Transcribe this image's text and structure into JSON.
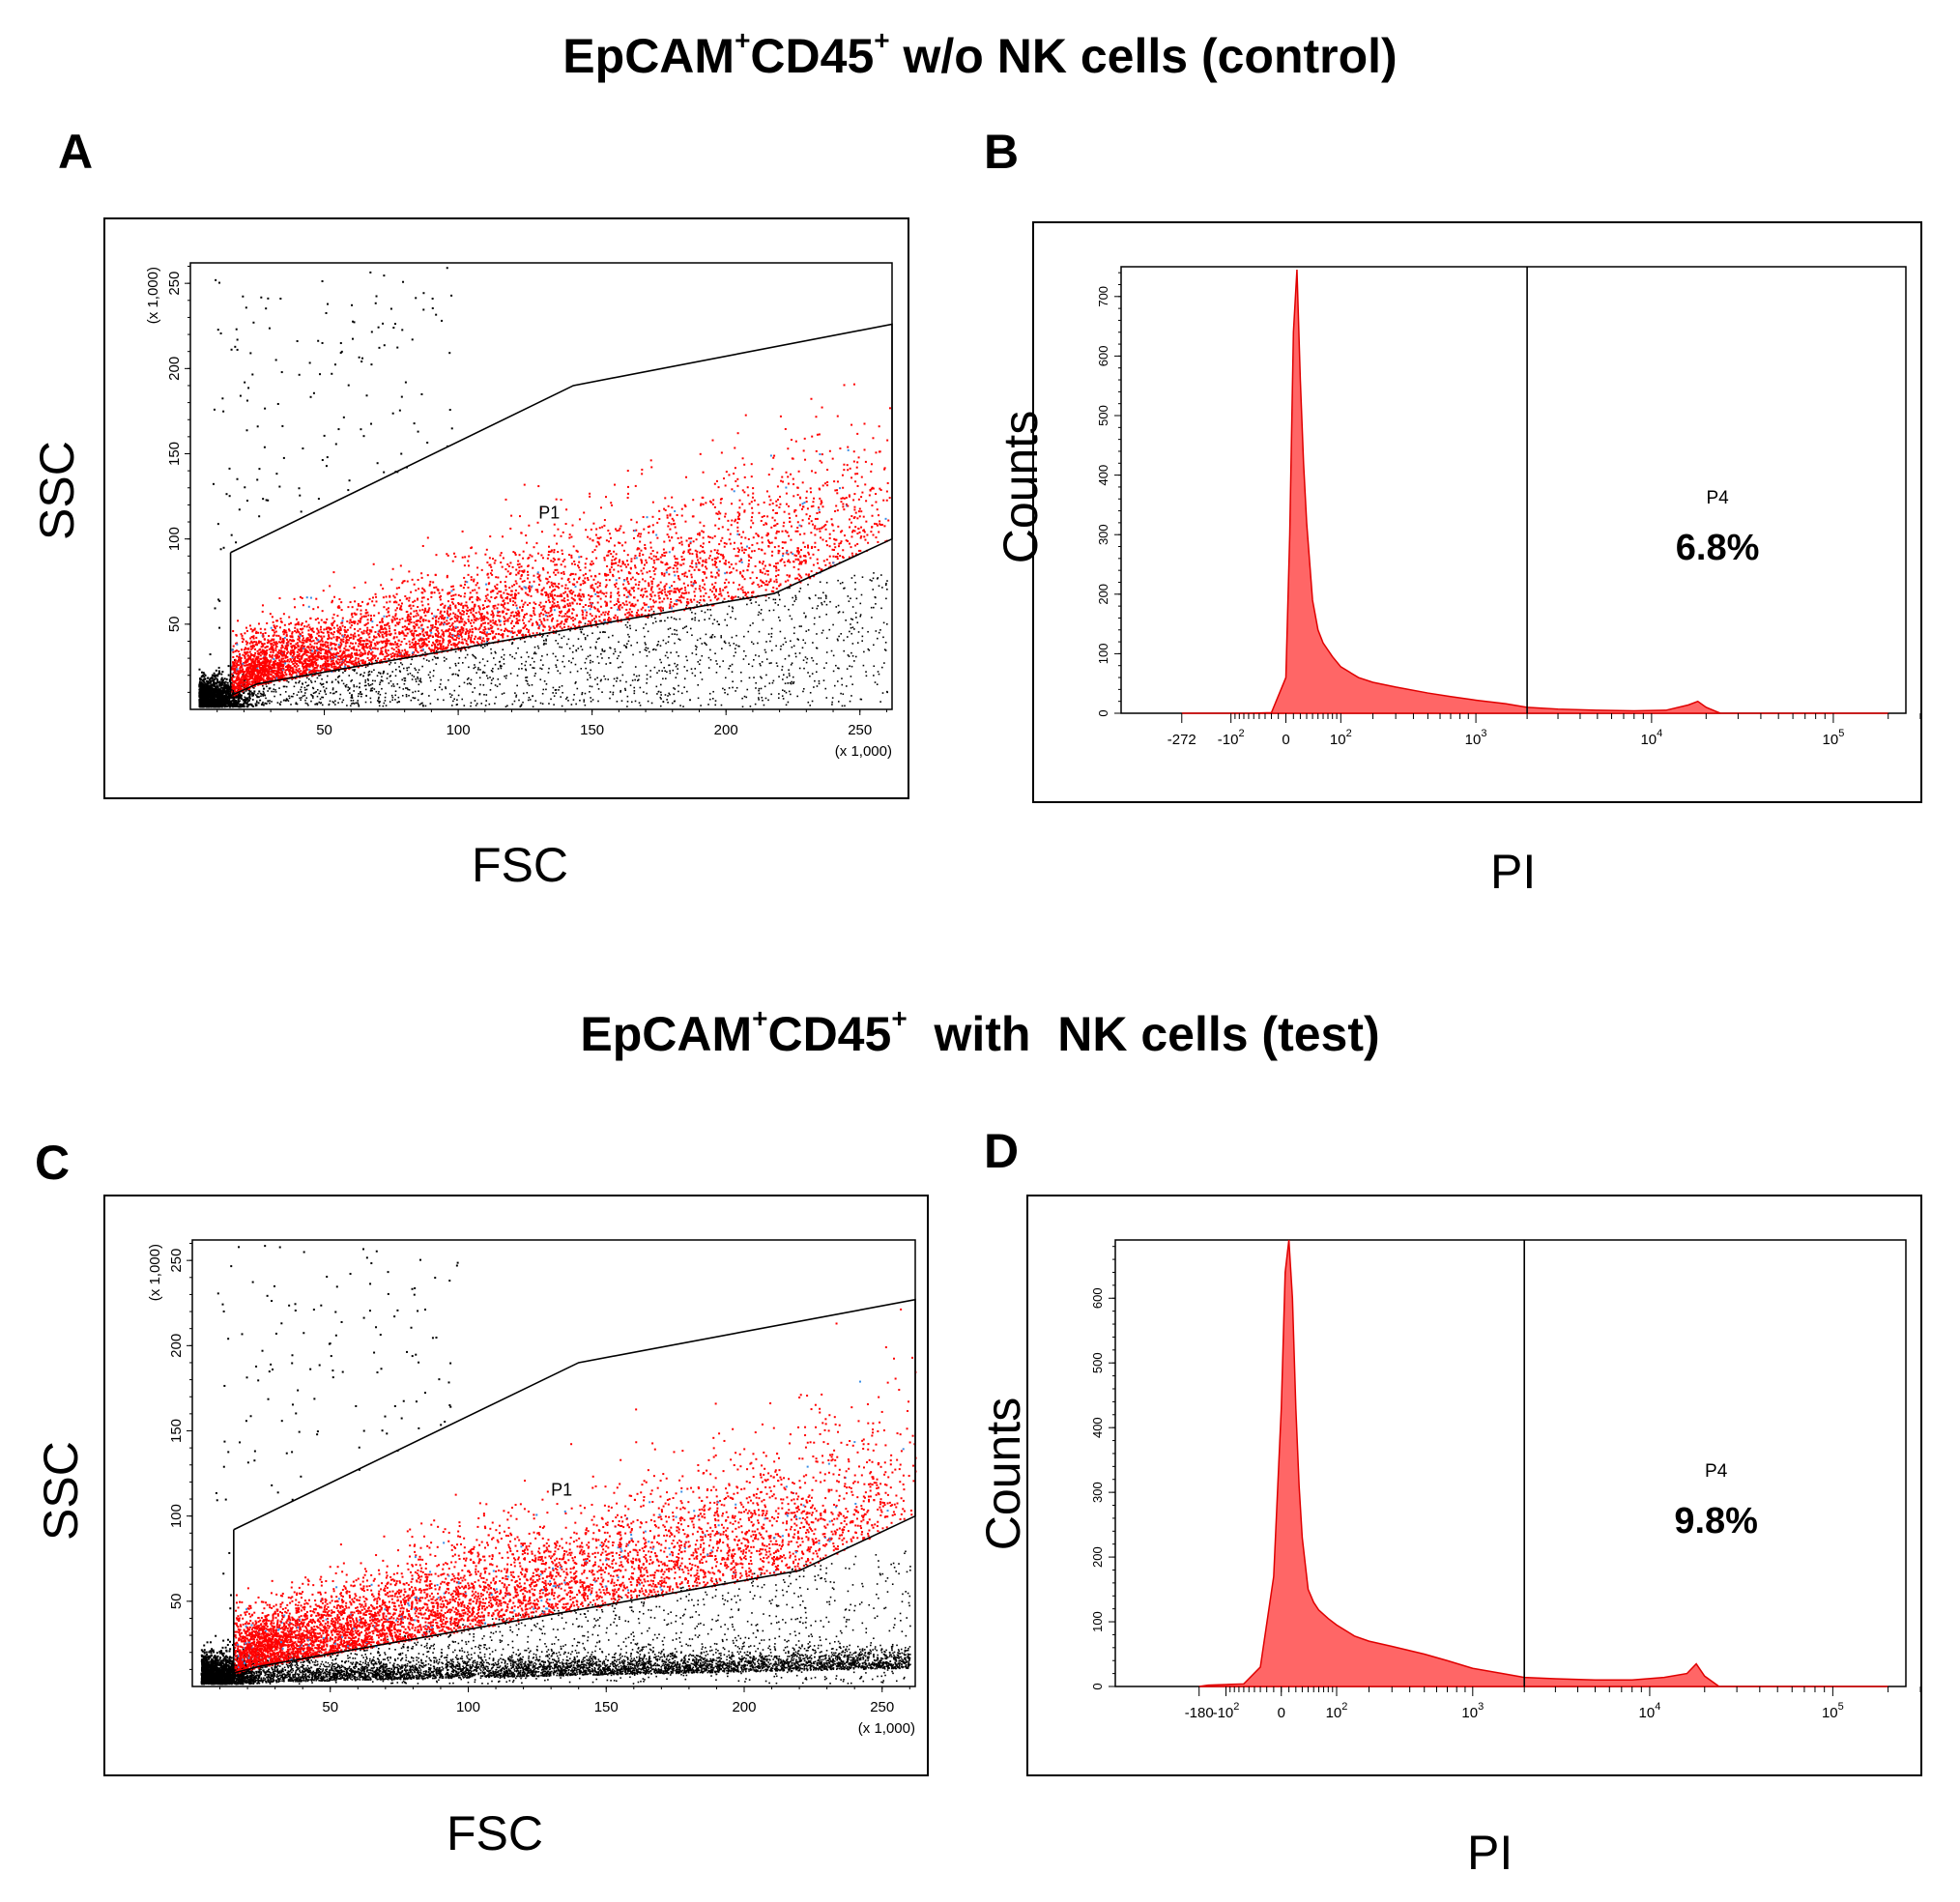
{
  "titles": {
    "top_main": "EpCAM",
    "top_sup1": "+",
    "top_mid": "CD45",
    "top_sup2": "+",
    "top_rest": " w/o NK cells (control)",
    "bottom_main": "EpCAM",
    "bottom_sup1": "+",
    "bottom_mid": "CD45",
    "bottom_sup2": "+",
    "bottom_rest": "  with  NK cells (test)"
  },
  "chart_data": [
    {
      "panel": "A",
      "type": "scatter",
      "xlabel": "FSC",
      "ylabel": "SSC",
      "x_multiplier_label": "(x 1,000)",
      "y_multiplier_label": "(x 1,000)",
      "xlim": [
        0,
        262
      ],
      "ylim": [
        0,
        262
      ],
      "xticks": [
        50,
        100,
        150,
        200,
        250
      ],
      "yticks": [
        50,
        100,
        150,
        200,
        250
      ],
      "gate_label": "P1",
      "gate_polygon": [
        [
          15,
          92
        ],
        [
          15,
          8
        ],
        [
          25,
          15
        ],
        [
          218,
          68
        ],
        [
          262,
          100
        ],
        [
          262,
          226
        ],
        [
          143,
          190
        ],
        [
          15,
          92
        ]
      ],
      "series": [
        {
          "color": "#ff0000",
          "center": [
            60,
            35
          ],
          "spread": [
            40,
            22
          ],
          "count": 5200
        },
        {
          "color": "#000000",
          "note_debris": [
            8,
            10
          ],
          "count": 2600
        }
      ]
    },
    {
      "panel": "B",
      "type": "area",
      "xlabel": "PI",
      "ylabel": "Counts",
      "ylim": [
        0,
        750
      ],
      "yticks": [
        0,
        100,
        200,
        300,
        400,
        500,
        600,
        700
      ],
      "xtick_labels": [
        "-272",
        "-10",
        "0",
        "10",
        "10",
        "10",
        "10"
      ],
      "xtick_sups": [
        "",
        "2",
        "",
        "2",
        "3",
        "4",
        "5"
      ],
      "gate_label": "P4",
      "gate_percent": "6.8%",
      "x": [
        -272,
        -150,
        -60,
        -20,
        0,
        5,
        10,
        15,
        20,
        25,
        30,
        40,
        50,
        60,
        80,
        100,
        150,
        200,
        300,
        500,
        700,
        1000,
        1500,
        2000,
        3000,
        5000,
        8000,
        12000,
        16000,
        18000,
        20000,
        24000,
        100000,
        200000
      ],
      "values": [
        0,
        0,
        0,
        1,
        60,
        300,
        640,
        745,
        560,
        420,
        320,
        190,
        140,
        118,
        95,
        78,
        60,
        52,
        44,
        34,
        28,
        22,
        16,
        10,
        7,
        5,
        4,
        5,
        14,
        20,
        10,
        0,
        0,
        0
      ],
      "fill": "#ff6666",
      "stroke": "#e00000"
    },
    {
      "panel": "C",
      "type": "scatter",
      "xlabel": "FSC",
      "ylabel": "SSC",
      "x_multiplier_label": "(x 1,000)",
      "y_multiplier_label": "(x 1,000)",
      "xlim": [
        0,
        262
      ],
      "ylim": [
        0,
        262
      ],
      "xticks": [
        50,
        100,
        150,
        200,
        250
      ],
      "yticks": [
        50,
        100,
        150,
        200,
        250
      ],
      "gate_label": "P1",
      "gate_polygon": [
        [
          15,
          92
        ],
        [
          15,
          8
        ],
        [
          25,
          12
        ],
        [
          220,
          68
        ],
        [
          262,
          100
        ],
        [
          262,
          227
        ],
        [
          140,
          190
        ],
        [
          15,
          92
        ]
      ],
      "series": [
        {
          "color": "#ff0000",
          "center": [
            70,
            40
          ],
          "spread": [
            45,
            25
          ],
          "count": 6200
        },
        {
          "color": "#000000",
          "note_band": [
            5,
            15
          ],
          "count": 7200
        }
      ]
    },
    {
      "panel": "D",
      "type": "area",
      "xlabel": "PI",
      "ylabel": "Counts",
      "ylim": [
        0,
        690
      ],
      "yticks": [
        0,
        100,
        200,
        300,
        400,
        500,
        600
      ],
      "xtick_labels": [
        "-180",
        "-10",
        "0",
        "10",
        "10",
        "10",
        "10"
      ],
      "xtick_sups": [
        "",
        "2",
        "",
        "2",
        "3",
        "4",
        "5"
      ],
      "gate_label": "P4",
      "gate_percent": "9.8%",
      "x": [
        -180,
        -150,
        -100,
        -60,
        -30,
        -10,
        0,
        5,
        10,
        15,
        20,
        25,
        30,
        40,
        50,
        60,
        80,
        100,
        150,
        200,
        300,
        500,
        700,
        1000,
        1500,
        2000,
        3000,
        5000,
        8000,
        12000,
        16000,
        18000,
        20000,
        24000,
        100000,
        200000
      ],
      "values": [
        0,
        2,
        3,
        4,
        30,
        170,
        430,
        640,
        690,
        600,
        430,
        310,
        230,
        150,
        130,
        118,
        105,
        95,
        78,
        70,
        62,
        50,
        40,
        28,
        20,
        14,
        12,
        10,
        10,
        14,
        20,
        35,
        16,
        0,
        0,
        0
      ],
      "fill": "#ff6666",
      "stroke": "#e00000"
    }
  ]
}
